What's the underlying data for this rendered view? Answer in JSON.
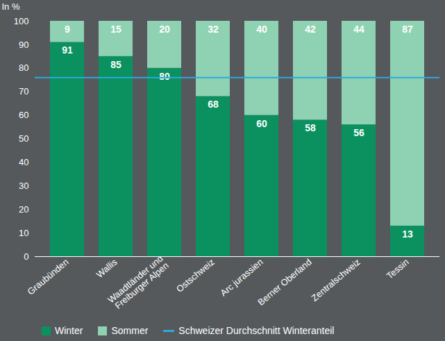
{
  "chart_data": {
    "type": "bar",
    "stacked": true,
    "data_labels": true,
    "grid": false,
    "ylabel": "In %",
    "categories": [
      "Graubünden",
      "Wallis",
      "Waadtländer und\nFreiburger Alpen",
      "Ostschweiz",
      "Arc jurassien",
      "Berner Oberland",
      "Zentralschweiz",
      "Tessin"
    ],
    "series": [
      {
        "name": "Winter",
        "color": "#0b9160",
        "values": [
          91,
          85,
          80,
          68,
          60,
          58,
          56,
          13
        ]
      },
      {
        "name": "Sommer",
        "color": "#8ed2b3",
        "values": [
          9,
          15,
          20,
          32,
          40,
          42,
          44,
          87
        ]
      }
    ],
    "lines": [
      {
        "name": "Schweizer Durchschnitt Winteranteil",
        "value": 76,
        "color": "#2ea8e0"
      }
    ],
    "ylim": [
      0,
      100
    ],
    "yticks": [
      0,
      10,
      20,
      30,
      40,
      50,
      60,
      70,
      80,
      90,
      100
    ]
  }
}
